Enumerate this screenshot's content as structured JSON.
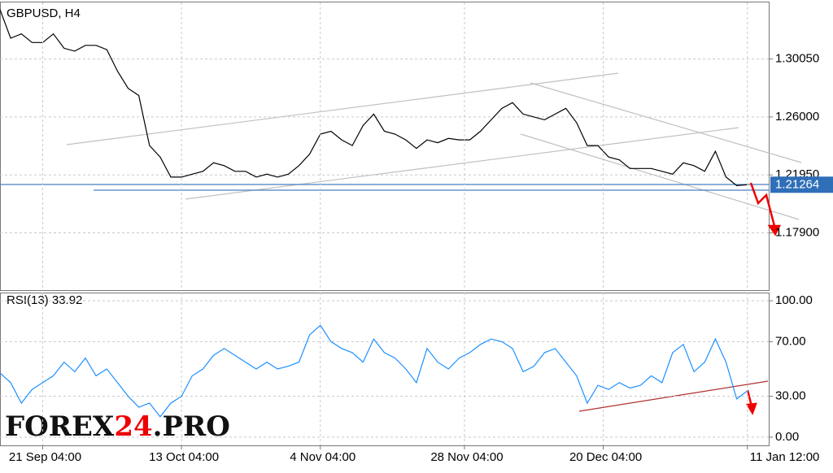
{
  "chart_data": [
    {
      "type": "line",
      "title": "GBPUSD, H4",
      "x": [
        0,
        1,
        2,
        3,
        4,
        5,
        6,
        7,
        8,
        9,
        10,
        11,
        12,
        13,
        14,
        15,
        16,
        17,
        18,
        19,
        20,
        21,
        22,
        23,
        24,
        25,
        26,
        27,
        28,
        29,
        30,
        31,
        32,
        33,
        34,
        35,
        36,
        37,
        38,
        39,
        40,
        41,
        42,
        43,
        44,
        45,
        46,
        47,
        48,
        49,
        50,
        51,
        52,
        53,
        54,
        55,
        56,
        57,
        58,
        59,
        60,
        61,
        62,
        63,
        64,
        65,
        66,
        67,
        68,
        69,
        70
      ],
      "series": [
        {
          "name": "GBPUSD",
          "color": "#000000",
          "values": [
            1.335,
            1.315,
            1.318,
            1.312,
            1.312,
            1.318,
            1.308,
            1.306,
            1.31,
            1.31,
            1.307,
            1.292,
            1.28,
            1.275,
            1.24,
            1.232,
            1.218,
            1.218,
            1.22,
            1.222,
            1.228,
            1.226,
            1.222,
            1.222,
            1.218,
            1.22,
            1.218,
            1.22,
            1.226,
            1.234,
            1.248,
            1.25,
            1.244,
            1.24,
            1.254,
            1.262,
            1.25,
            1.248,
            1.244,
            1.238,
            1.244,
            1.242,
            1.245,
            1.244,
            1.244,
            1.25,
            1.258,
            1.266,
            1.27,
            1.262,
            1.26,
            1.258,
            1.262,
            1.266,
            1.256,
            1.24,
            1.24,
            1.232,
            1.23,
            1.224,
            1.224,
            1.224,
            1.222,
            1.22,
            1.228,
            1.226,
            1.222,
            1.236,
            1.218,
            1.212,
            1.21264
          ]
        }
      ],
      "last_price": {
        "value": 1.21264,
        "label": "1.21264"
      },
      "xlim": [
        0,
        72
      ],
      "ylim": [
        1.139,
        1.34
      ],
      "yticks": [
        {
          "value": 1.3005,
          "label": "1.30050"
        },
        {
          "value": 1.26,
          "label": "1.26000"
        },
        {
          "value": 1.2195,
          "label": "1.21950"
        },
        {
          "value": 1.179,
          "label": "1.17900"
        }
      ],
      "grid": true
    },
    {
      "type": "line",
      "title": "RSI(13) 33.92",
      "x": [
        0,
        1,
        2,
        3,
        4,
        5,
        6,
        7,
        8,
        9,
        10,
        11,
        12,
        13,
        14,
        15,
        16,
        17,
        18,
        19,
        20,
        21,
        22,
        23,
        24,
        25,
        26,
        27,
        28,
        29,
        30,
        31,
        32,
        33,
        34,
        35,
        36,
        37,
        38,
        39,
        40,
        41,
        42,
        43,
        44,
        45,
        46,
        47,
        48,
        49,
        50,
        51,
        52,
        53,
        54,
        55,
        56,
        57,
        58,
        59,
        60,
        61,
        62,
        63,
        64,
        65,
        66,
        67,
        68,
        69,
        70
      ],
      "series": [
        {
          "name": "RSI(13)",
          "color": "#1e90ff",
          "values": [
            47,
            40,
            25,
            35,
            40,
            45,
            55,
            48,
            58,
            45,
            50,
            40,
            30,
            22,
            25,
            15,
            25,
            30,
            45,
            50,
            60,
            65,
            60,
            55,
            50,
            55,
            50,
            52,
            55,
            75,
            82,
            70,
            65,
            62,
            55,
            72,
            62,
            58,
            50,
            40,
            65,
            55,
            50,
            58,
            62,
            68,
            72,
            70,
            65,
            48,
            52,
            62,
            65,
            55,
            45,
            25,
            38,
            35,
            40,
            36,
            38,
            45,
            40,
            62,
            68,
            48,
            55,
            72,
            55,
            28,
            34
          ]
        }
      ],
      "xlim": [
        0,
        72
      ],
      "ylim": [
        -6,
        106
      ],
      "yticks": [
        {
          "value": 100,
          "label": "100.00"
        },
        {
          "value": 70,
          "label": "70.00"
        },
        {
          "value": 30,
          "label": "30.00"
        },
        {
          "value": 0,
          "label": "0.00"
        }
      ],
      "xticks": [
        {
          "value": 4,
          "label": "21 Sep 04:00"
        },
        {
          "value": 17,
          "label": "13 Oct 04:00"
        },
        {
          "value": 30,
          "label": "4 Nov 04:00"
        },
        {
          "value": 43.5,
          "label": "28 Nov 04:00"
        },
        {
          "value": 56.5,
          "label": "20 Dec 04:00"
        },
        {
          "value": 70,
          "label": "11 Jan 12:00"
        }
      ],
      "grid": true
    }
  ],
  "watermark": {
    "part1": "FOREX",
    "part2": "24",
    "part3": ".PRO"
  }
}
